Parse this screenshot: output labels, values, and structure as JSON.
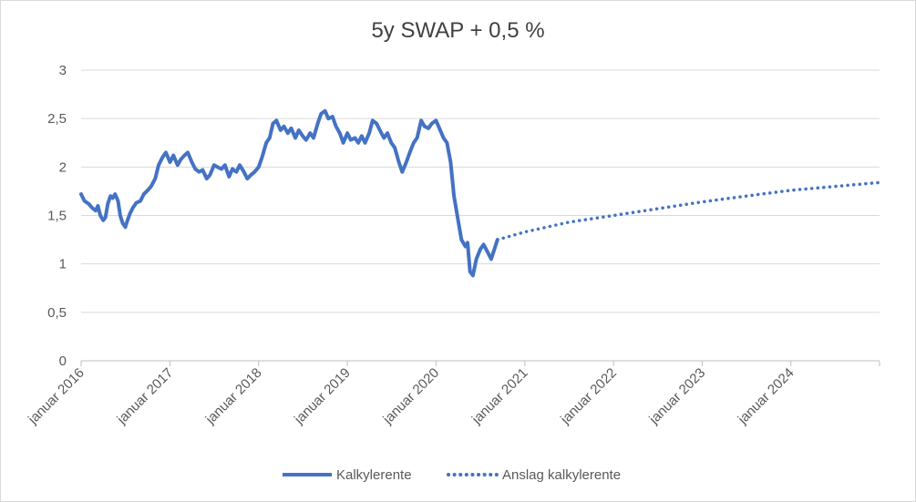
{
  "chart_data": {
    "type": "line",
    "title": "5y SWAP + 0,5 %",
    "xlabel": "",
    "ylabel": "",
    "xlim": [
      "2016-01-01",
      "2024-12-31"
    ],
    "ylim": [
      0,
      3
    ],
    "y_ticks": [
      {
        "value": 0,
        "label": "0"
      },
      {
        "value": 0.5,
        "label": "0,5"
      },
      {
        "value": 1,
        "label": "1"
      },
      {
        "value": 1.5,
        "label": "1,5"
      },
      {
        "value": 2,
        "label": "2"
      },
      {
        "value": 2.5,
        "label": "2,5"
      },
      {
        "value": 3,
        "label": "3"
      }
    ],
    "x_ticks": [
      {
        "date": "2016-01-01",
        "label": "januar 2016"
      },
      {
        "date": "2017-01-01",
        "label": "januar 2017"
      },
      {
        "date": "2018-01-01",
        "label": "januar 2018"
      },
      {
        "date": "2019-01-01",
        "label": "januar 2019"
      },
      {
        "date": "2020-01-01",
        "label": "januar 2020"
      },
      {
        "date": "2021-01-01",
        "label": "januar 2021"
      },
      {
        "date": "2022-01-01",
        "label": "januar 2022"
      },
      {
        "date": "2023-01-01",
        "label": "januar 2023"
      },
      {
        "date": "2024-01-01",
        "label": "januar 2024"
      }
    ],
    "grid": "horizontal",
    "legend": "bottom",
    "series": [
      {
        "name": "Kalkylerente",
        "style": "solid",
        "color": "#4472C4",
        "points": [
          [
            "2016-01-01",
            1.72
          ],
          [
            "2016-01-15",
            1.65
          ],
          [
            "2016-02-01",
            1.62
          ],
          [
            "2016-02-15",
            1.58
          ],
          [
            "2016-03-01",
            1.55
          ],
          [
            "2016-03-10",
            1.6
          ],
          [
            "2016-03-20",
            1.5
          ],
          [
            "2016-04-01",
            1.45
          ],
          [
            "2016-04-10",
            1.48
          ],
          [
            "2016-04-20",
            1.62
          ],
          [
            "2016-05-01",
            1.7
          ],
          [
            "2016-05-10",
            1.68
          ],
          [
            "2016-05-20",
            1.72
          ],
          [
            "2016-06-01",
            1.65
          ],
          [
            "2016-06-10",
            1.5
          ],
          [
            "2016-06-20",
            1.42
          ],
          [
            "2016-07-01",
            1.38
          ],
          [
            "2016-07-10",
            1.45
          ],
          [
            "2016-07-20",
            1.52
          ],
          [
            "2016-08-01",
            1.58
          ],
          [
            "2016-08-15",
            1.63
          ],
          [
            "2016-09-01",
            1.65
          ],
          [
            "2016-09-15",
            1.72
          ],
          [
            "2016-10-01",
            1.76
          ],
          [
            "2016-10-15",
            1.8
          ],
          [
            "2016-11-01",
            1.88
          ],
          [
            "2016-11-15",
            2.02
          ],
          [
            "2016-12-01",
            2.1
          ],
          [
            "2016-12-15",
            2.15
          ],
          [
            "2017-01-01",
            2.05
          ],
          [
            "2017-01-15",
            2.12
          ],
          [
            "2017-02-01",
            2.02
          ],
          [
            "2017-02-15",
            2.08
          ],
          [
            "2017-03-01",
            2.12
          ],
          [
            "2017-03-15",
            2.15
          ],
          [
            "2017-04-01",
            2.05
          ],
          [
            "2017-04-15",
            1.98
          ],
          [
            "2017-05-01",
            1.95
          ],
          [
            "2017-05-15",
            1.97
          ],
          [
            "2017-06-01",
            1.88
          ],
          [
            "2017-06-15",
            1.92
          ],
          [
            "2017-07-01",
            2.02
          ],
          [
            "2017-07-15",
            2.0
          ],
          [
            "2017-08-01",
            1.98
          ],
          [
            "2017-08-15",
            2.02
          ],
          [
            "2017-09-01",
            1.9
          ],
          [
            "2017-09-15",
            1.98
          ],
          [
            "2017-10-01",
            1.95
          ],
          [
            "2017-10-15",
            2.02
          ],
          [
            "2017-11-01",
            1.95
          ],
          [
            "2017-11-15",
            1.88
          ],
          [
            "2017-12-01",
            1.92
          ],
          [
            "2017-12-15",
            1.95
          ],
          [
            "2018-01-01",
            2.0
          ],
          [
            "2018-01-15",
            2.1
          ],
          [
            "2018-02-01",
            2.25
          ],
          [
            "2018-02-15",
            2.3
          ],
          [
            "2018-03-01",
            2.45
          ],
          [
            "2018-03-15",
            2.48
          ],
          [
            "2018-04-01",
            2.38
          ],
          [
            "2018-04-15",
            2.42
          ],
          [
            "2018-05-01",
            2.35
          ],
          [
            "2018-05-15",
            2.4
          ],
          [
            "2018-06-01",
            2.3
          ],
          [
            "2018-06-15",
            2.38
          ],
          [
            "2018-07-01",
            2.32
          ],
          [
            "2018-07-15",
            2.28
          ],
          [
            "2018-08-01",
            2.35
          ],
          [
            "2018-08-15",
            2.3
          ],
          [
            "2018-09-01",
            2.45
          ],
          [
            "2018-09-15",
            2.55
          ],
          [
            "2018-10-01",
            2.58
          ],
          [
            "2018-10-15",
            2.5
          ],
          [
            "2018-11-01",
            2.52
          ],
          [
            "2018-11-15",
            2.42
          ],
          [
            "2018-12-01",
            2.35
          ],
          [
            "2018-12-15",
            2.25
          ],
          [
            "2019-01-01",
            2.35
          ],
          [
            "2019-01-15",
            2.28
          ],
          [
            "2019-02-01",
            2.3
          ],
          [
            "2019-02-15",
            2.25
          ],
          [
            "2019-03-01",
            2.32
          ],
          [
            "2019-03-15",
            2.25
          ],
          [
            "2019-04-01",
            2.35
          ],
          [
            "2019-04-15",
            2.48
          ],
          [
            "2019-05-01",
            2.45
          ],
          [
            "2019-05-15",
            2.38
          ],
          [
            "2019-06-01",
            2.3
          ],
          [
            "2019-06-15",
            2.35
          ],
          [
            "2019-07-01",
            2.25
          ],
          [
            "2019-07-15",
            2.2
          ],
          [
            "2019-08-01",
            2.05
          ],
          [
            "2019-08-15",
            1.95
          ],
          [
            "2019-09-01",
            2.05
          ],
          [
            "2019-09-15",
            2.15
          ],
          [
            "2019-10-01",
            2.25
          ],
          [
            "2019-10-15",
            2.3
          ],
          [
            "2019-11-01",
            2.48
          ],
          [
            "2019-11-15",
            2.42
          ],
          [
            "2019-12-01",
            2.4
          ],
          [
            "2019-12-15",
            2.45
          ],
          [
            "2020-01-01",
            2.48
          ],
          [
            "2020-01-15",
            2.4
          ],
          [
            "2020-02-01",
            2.3
          ],
          [
            "2020-02-15",
            2.25
          ],
          [
            "2020-03-01",
            2.05
          ],
          [
            "2020-03-15",
            1.7
          ],
          [
            "2020-04-01",
            1.45
          ],
          [
            "2020-04-15",
            1.25
          ],
          [
            "2020-05-01",
            1.18
          ],
          [
            "2020-05-10",
            1.22
          ],
          [
            "2020-05-20",
            0.92
          ],
          [
            "2020-06-01",
            0.88
          ],
          [
            "2020-06-15",
            1.05
          ],
          [
            "2020-07-01",
            1.15
          ],
          [
            "2020-07-15",
            1.2
          ],
          [
            "2020-08-01",
            1.12
          ],
          [
            "2020-08-15",
            1.05
          ],
          [
            "2020-09-01",
            1.18
          ],
          [
            "2020-09-10",
            1.25
          ]
        ]
      },
      {
        "name": "Anslag kalkylerente",
        "style": "dotted",
        "color": "#4472C4",
        "points": [
          [
            "2020-09-10",
            1.25
          ],
          [
            "2021-01-01",
            1.33
          ],
          [
            "2021-07-01",
            1.43
          ],
          [
            "2022-01-01",
            1.5
          ],
          [
            "2022-07-01",
            1.57
          ],
          [
            "2023-01-01",
            1.64
          ],
          [
            "2023-07-01",
            1.7
          ],
          [
            "2024-01-01",
            1.76
          ],
          [
            "2024-07-01",
            1.8
          ],
          [
            "2024-12-31",
            1.84
          ]
        ]
      }
    ]
  }
}
